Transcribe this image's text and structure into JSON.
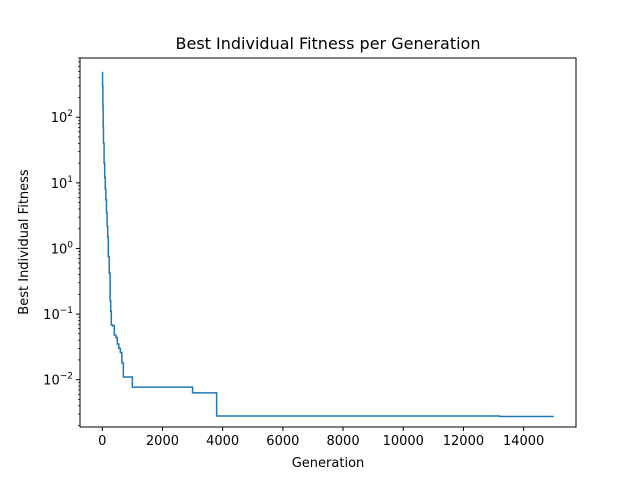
{
  "chart_data": {
    "type": "line",
    "title": "Best Individual Fitness per Generation",
    "xlabel": "Generation",
    "ylabel": "Best Individual Fitness",
    "yscale": "log",
    "xlim": [
      -740,
      15740
    ],
    "ylim": [
      0.0019,
      800
    ],
    "grid": false,
    "legend": "none",
    "x_ticks": [
      0,
      2000,
      4000,
      6000,
      8000,
      10000,
      12000,
      14000
    ],
    "x_tick_labels": [
      "0",
      "2000",
      "4000",
      "6000",
      "8000",
      "10000",
      "12000",
      "14000"
    ],
    "y_major_ticks": [
      0.01,
      0.1,
      1,
      10,
      100
    ],
    "y_tick_labels": [
      {
        "base": "10",
        "exp": "−2"
      },
      {
        "base": "10",
        "exp": "−1"
      },
      {
        "base": "10",
        "exp": "0"
      },
      {
        "base": "10",
        "exp": "1"
      },
      {
        "base": "10",
        "exp": "2"
      }
    ],
    "series": [
      {
        "color": "#1f77b4",
        "step": true,
        "x": [
          0,
          10,
          20,
          30,
          40,
          60,
          80,
          100,
          120,
          140,
          160,
          180,
          200,
          230,
          260,
          280,
          300,
          350,
          400,
          450,
          500,
          550,
          600,
          650,
          700,
          800,
          1000,
          2000,
          3000,
          3800,
          6000,
          10000,
          13200,
          15000
        ],
        "y": [
          480,
          300,
          150,
          70,
          40,
          20,
          12,
          8,
          5.5,
          3.5,
          2.2,
          1.5,
          0.75,
          0.42,
          0.16,
          0.11,
          0.068,
          0.066,
          0.048,
          0.044,
          0.035,
          0.03,
          0.026,
          0.018,
          0.011,
          0.011,
          0.0077,
          0.0077,
          0.0063,
          0.0028,
          0.0028,
          0.0028,
          0.00275,
          0.00275
        ]
      }
    ]
  }
}
